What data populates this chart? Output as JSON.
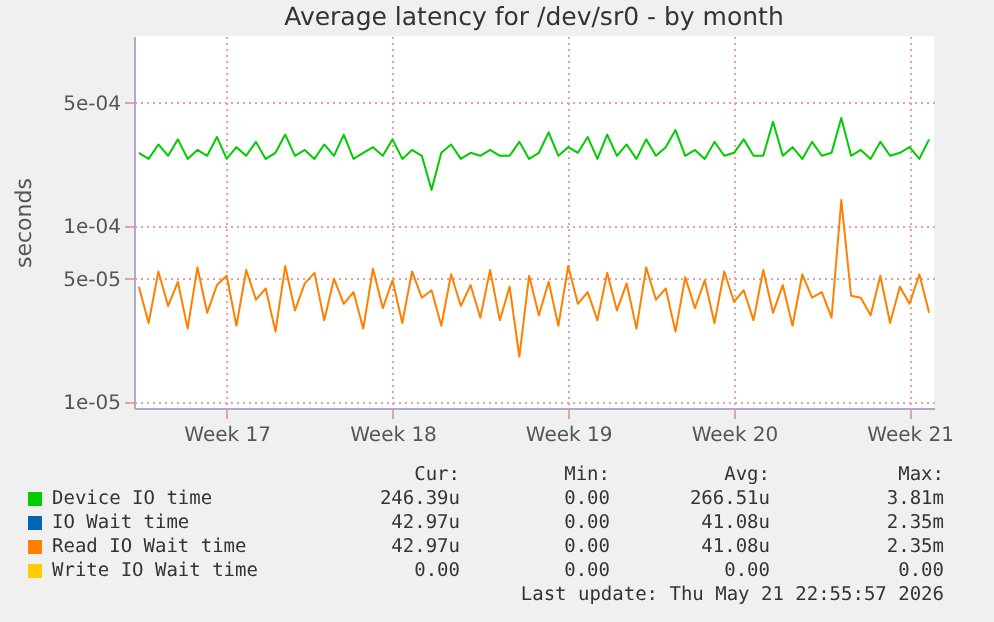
{
  "chart_data": {
    "type": "line",
    "title": "Average latency for /dev/sr0 - by month",
    "ylabel": "seconds",
    "log": "y",
    "grid": true,
    "legend": "bottom",
    "categories": [
      null,
      null,
      null,
      null,
      null,
      null,
      null,
      null,
      null,
      "Week 17",
      null,
      null,
      null,
      null,
      null,
      null,
      null,
      null,
      null,
      null,
      null,
      null,
      null,
      null,
      null,
      null,
      "Week 18",
      null,
      null,
      null,
      null,
      null,
      null,
      null,
      null,
      null,
      null,
      null,
      null,
      null,
      null,
      null,
      null,
      null,
      "Week 19",
      null,
      null,
      null,
      null,
      null,
      null,
      null,
      null,
      null,
      null,
      null,
      null,
      null,
      null,
      null,
      null,
      "Week 20",
      null,
      null,
      null,
      null,
      null,
      null,
      null,
      null,
      null,
      null,
      null,
      null,
      null,
      null,
      null,
      null,
      null,
      "Week 21",
      null,
      null
    ],
    "ylim": [
      9.2e-06,
      0.0012
    ],
    "yticks": [
      {
        "value": 1e-05,
        "label": "1e-05"
      },
      {
        "value": 5e-05,
        "label": "5e-05"
      },
      {
        "value": 0.0001,
        "label": "1e-04"
      },
      {
        "value": 0.0005,
        "label": "5e-04"
      }
    ],
    "series": [
      {
        "name": "Device IO time",
        "color": "#00cc00",
        "values": [
          0.00026,
          0.00024,
          0.00029,
          0.00025,
          0.00031,
          0.00024,
          0.00027,
          0.00025,
          0.00032,
          0.00024,
          0.00028,
          0.00025,
          0.0003,
          0.00024,
          0.00026,
          0.00033,
          0.00025,
          0.00027,
          0.00024,
          0.00029,
          0.00025,
          0.00033,
          0.00024,
          0.00026,
          0.00028,
          0.00025,
          0.00031,
          0.00024,
          0.00027,
          0.00025,
          0.00016,
          0.00026,
          0.00029,
          0.00024,
          0.00026,
          0.00025,
          0.00027,
          0.00025,
          0.00025,
          0.0003,
          0.00024,
          0.00026,
          0.00034,
          0.00025,
          0.00028,
          0.00026,
          0.00032,
          0.00024,
          0.00033,
          0.00025,
          0.00029,
          0.00024,
          0.00031,
          0.00025,
          0.00028,
          0.00035,
          0.00025,
          0.00027,
          0.00024,
          0.0003,
          0.00025,
          0.00026,
          0.00031,
          0.00025,
          0.00025,
          0.00039,
          0.00025,
          0.00028,
          0.00024,
          0.0003,
          0.00025,
          0.00026,
          0.00041,
          0.00025,
          0.00027,
          0.00024,
          0.0003,
          0.00025,
          0.00026,
          0.00028,
          0.00024,
          0.00031
        ]
      },
      {
        "name": "IO Wait time",
        "color": "#0066b3",
        "values": [
          null,
          null,
          null,
          null,
          null,
          null,
          null,
          null,
          null,
          null,
          null,
          null,
          null,
          null,
          null,
          null,
          null,
          null,
          null,
          null,
          null,
          null,
          null,
          null,
          null,
          null,
          null,
          null,
          null,
          null,
          null,
          null,
          null,
          null,
          null,
          null,
          null,
          null,
          null,
          null,
          null,
          null,
          null,
          null,
          null,
          null,
          null,
          null,
          null,
          null,
          null,
          null,
          null,
          null,
          null,
          null,
          null,
          null,
          null,
          null,
          null,
          null,
          null,
          null,
          null,
          null,
          null,
          null,
          null,
          null,
          null,
          null,
          null,
          null,
          null,
          null,
          null,
          null,
          null,
          null,
          null,
          null
        ]
      },
      {
        "name": "Read IO Wait time",
        "color": "#ff8000",
        "values": [
          4.5e-05,
          2.8e-05,
          5.5e-05,
          3.5e-05,
          4.8e-05,
          2.6e-05,
          5.8e-05,
          3.2e-05,
          4.6e-05,
          5.2e-05,
          2.7e-05,
          5.6e-05,
          3.8e-05,
          4.4e-05,
          2.5e-05,
          5.9e-05,
          3.3e-05,
          4.7e-05,
          5.4e-05,
          2.9e-05,
          5e-05,
          3.6e-05,
          4.2e-05,
          2.6e-05,
          5.7e-05,
          3.4e-05,
          4.9e-05,
          2.8e-05,
          5.5e-05,
          3.9e-05,
          4.3e-05,
          2.7e-05,
          5.3e-05,
          3.5e-05,
          4.6e-05,
          3e-05,
          5.6e-05,
          2.9e-05,
          4.5e-05,
          1.8e-05,
          5.2e-05,
          3.1e-05,
          4.8e-05,
          2.7e-05,
          5.9e-05,
          3.6e-05,
          4.2e-05,
          2.9e-05,
          5.4e-05,
          3.3e-05,
          4.7e-05,
          2.6e-05,
          5.8e-05,
          3.8e-05,
          4.4e-05,
          2.5e-05,
          5.1e-05,
          3.4e-05,
          4.9e-05,
          2.8e-05,
          5.5e-05,
          3.7e-05,
          4.3e-05,
          2.9e-05,
          5.6e-05,
          3.2e-05,
          4.6e-05,
          2.7e-05,
          5.3e-05,
          3.9e-05,
          4.2e-05,
          3e-05,
          0.00014,
          4e-05,
          3.9e-05,
          3.1e-05,
          5.2e-05,
          2.8e-05,
          4.5e-05,
          3.6e-05,
          5.3e-05,
          3.2e-05
        ]
      },
      {
        "name": "Write IO Wait time",
        "color": "#ffcc00",
        "values": [
          null,
          null,
          null,
          null,
          null,
          null,
          null,
          null,
          null,
          null,
          null,
          null,
          null,
          null,
          null,
          null,
          null,
          null,
          null,
          null,
          null,
          null,
          null,
          null,
          null,
          null,
          null,
          null,
          null,
          null,
          null,
          null,
          null,
          null,
          null,
          null,
          null,
          null,
          null,
          null,
          null,
          null,
          null,
          null,
          null,
          null,
          null,
          null,
          null,
          null,
          null,
          null,
          null,
          null,
          null,
          null,
          null,
          null,
          null,
          null,
          null,
          null,
          null,
          null,
          null,
          null,
          null,
          null,
          null,
          null,
          null,
          null,
          null,
          null,
          null,
          null,
          null,
          null,
          null,
          null,
          null,
          null
        ]
      }
    ],
    "annotations": [
      "Cur:",
      "Min:",
      "Avg:",
      "Max:",
      "246.39u",
      "0.00",
      "266.51u",
      "3.81m",
      "42.97u",
      "0.00",
      "41.08u",
      "2.35m",
      "42.97u",
      "0.00",
      "41.08u",
      "2.35m",
      "0.00",
      "0.00",
      "0.00",
      "0.00",
      "Last update: Thu May 21 22:55:57 2026"
    ]
  }
}
